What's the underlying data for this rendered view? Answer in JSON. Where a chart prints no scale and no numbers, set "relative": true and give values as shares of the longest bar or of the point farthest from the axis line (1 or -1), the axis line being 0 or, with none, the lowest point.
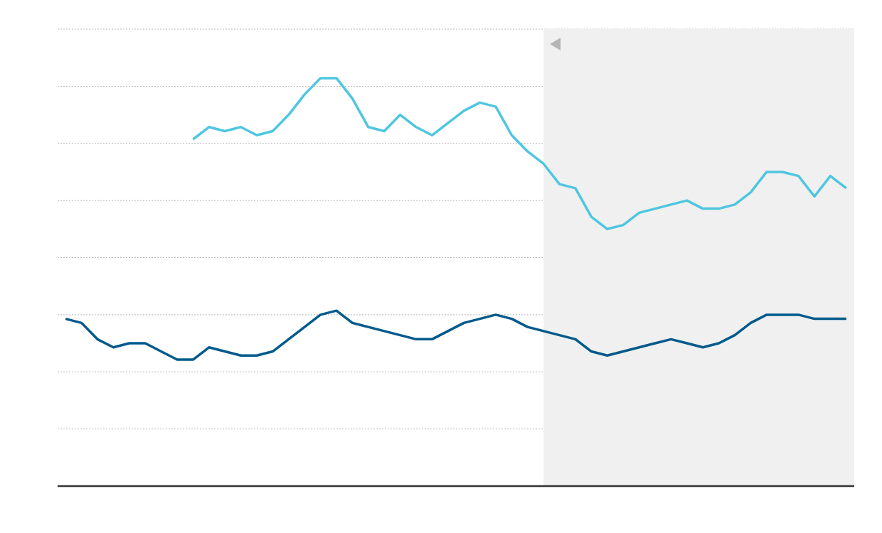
{
  "chart_data": {
    "type": "line",
    "relative": true,
    "grid": "y",
    "legend": false,
    "line_style": "solid",
    "marker": "none",
    "categories": [
      null,
      null,
      null,
      null,
      null,
      null,
      null,
      null,
      null,
      null,
      null,
      null,
      null,
      null,
      null,
      null,
      null,
      null,
      null,
      null,
      null,
      null,
      null,
      null,
      null,
      null,
      null,
      null,
      null,
      null,
      null,
      null,
      null,
      null,
      null,
      null,
      null,
      null,
      null,
      null,
      null,
      null,
      null,
      null,
      null,
      null,
      null,
      null,
      null,
      null
    ],
    "series": [
      {
        "color": "#4fc6e0",
        "values": [
          null,
          null,
          null,
          null,
          null,
          null,
          null,
          null,
          0.85,
          0.88,
          0.87,
          0.88,
          0.86,
          0.87,
          0.91,
          0.96,
          1.0,
          1.0,
          0.95,
          0.88,
          0.87,
          0.91,
          0.88,
          0.86,
          0.89,
          0.92,
          0.94,
          0.93,
          0.86,
          0.82,
          0.79,
          0.74,
          0.73,
          0.66,
          0.63,
          0.64,
          0.67,
          0.68,
          0.69,
          0.7,
          0.68,
          0.68,
          0.69,
          0.72,
          0.77,
          0.77,
          0.76,
          0.71,
          0.76,
          0.73
        ]
      },
      {
        "color": "#005a8c",
        "values": [
          0.41,
          0.4,
          0.36,
          0.34,
          0.35,
          0.35,
          0.33,
          0.31,
          0.31,
          0.34,
          0.33,
          0.32,
          0.32,
          0.33,
          0.36,
          0.39,
          0.42,
          0.43,
          0.4,
          0.39,
          0.38,
          0.37,
          0.36,
          0.36,
          0.38,
          0.4,
          0.41,
          0.42,
          0.41,
          0.39,
          0.38,
          0.37,
          0.36,
          0.33,
          0.32,
          0.33,
          0.34,
          0.35,
          0.36,
          0.35,
          0.34,
          0.35,
          0.37,
          0.4,
          0.42,
          0.42,
          0.42,
          0.41,
          0.41,
          0.41
        ]
      }
    ]
  }
}
